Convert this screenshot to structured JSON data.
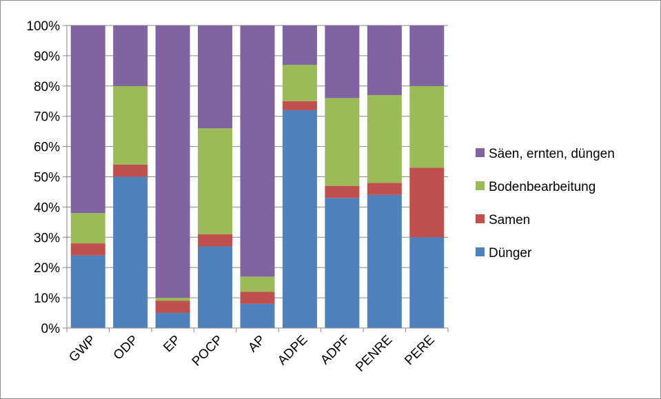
{
  "chart_data": {
    "type": "bar",
    "stacked": true,
    "normalized": true,
    "categories": [
      "GWP",
      "ODP",
      "EP",
      "POCP",
      "AP",
      "ADPE",
      "ADPF",
      "PENRE",
      "PERE"
    ],
    "series": [
      {
        "name": "Dünger",
        "color": "#4f81bd",
        "values": [
          24,
          50,
          5,
          27,
          8,
          72,
          43,
          44,
          30
        ]
      },
      {
        "name": "Samen",
        "color": "#c0504d",
        "values": [
          4,
          4,
          4,
          4,
          4,
          3,
          4,
          4,
          23
        ]
      },
      {
        "name": "Bodenbearbeitung",
        "color": "#9bbb59",
        "values": [
          10,
          26,
          1,
          35,
          5,
          12,
          29,
          29,
          27
        ]
      },
      {
        "name": "Säen, ernten, düngen",
        "color": "#8064a2",
        "values": [
          62,
          20,
          90,
          34,
          83,
          13,
          24,
          23,
          20
        ]
      }
    ],
    "yticks": [
      "0%",
      "10%",
      "20%",
      "30%",
      "40%",
      "50%",
      "60%",
      "70%",
      "80%",
      "90%",
      "100%"
    ],
    "ylim": [
      0,
      100
    ],
    "grid": true,
    "legend_position": "right",
    "legend_order": [
      "Säen, ernten, düngen",
      "Bodenbearbeitung",
      "Samen",
      "Dünger"
    ]
  }
}
